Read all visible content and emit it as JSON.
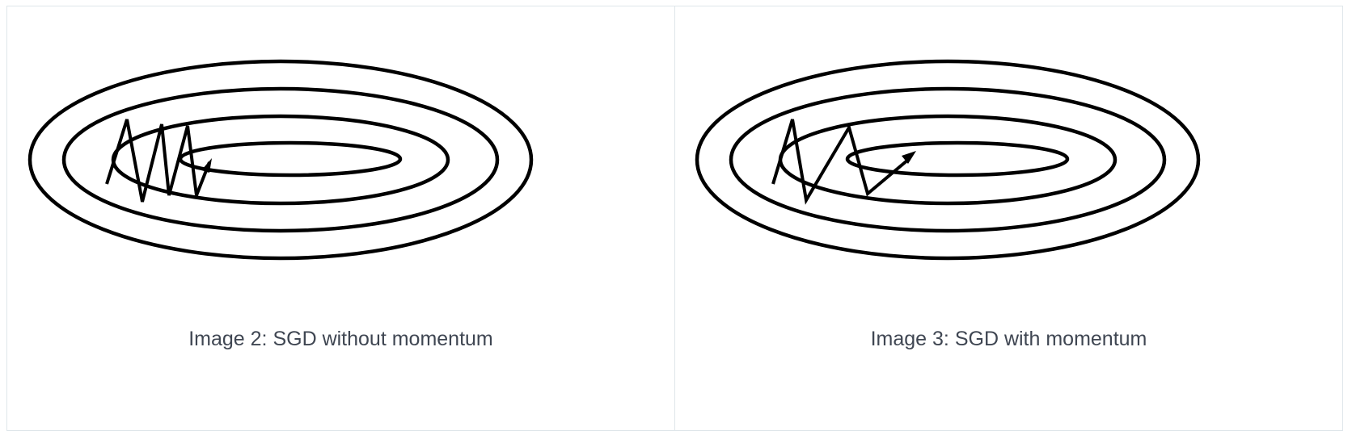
{
  "figures": [
    {
      "caption": "Image 2: SGD without momentum",
      "path_style": "zigzag-oscillating",
      "stroke_color": "#000000",
      "icon": "contour-ellipses-diagram"
    },
    {
      "caption": "Image 3: SGD with momentum",
      "path_style": "damped-zigzag-converging",
      "stroke_color": "#000000",
      "icon": "contour-ellipses-diagram"
    }
  ],
  "colors": {
    "border": "#dfe6ea",
    "caption_text": "#3f4652",
    "background": "#ffffff"
  }
}
